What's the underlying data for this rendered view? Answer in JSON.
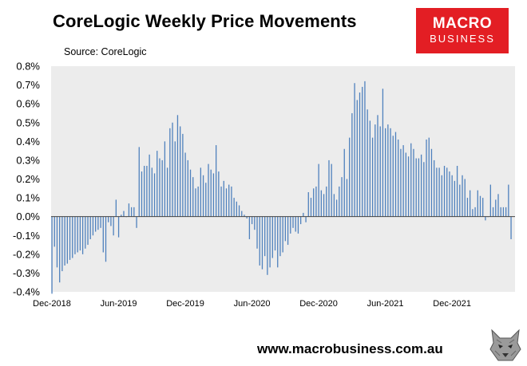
{
  "header": {
    "title": "CoreLogic Weekly Price Movements",
    "source": "Source: CoreLogic"
  },
  "logo": {
    "line1": "MACRO",
    "line2": "BUSINESS"
  },
  "footer": {
    "url": "www.macrobusiness.com.au"
  },
  "colors": {
    "bar": "#4f81bd",
    "plot_bg": "#ececec",
    "logo_bg": "#e31e24"
  },
  "chart_data": {
    "type": "bar",
    "title": "CoreLogic Weekly Price Movements",
    "ylim": [
      -0.4,
      0.8
    ],
    "yticks": [
      "0.8%",
      "0.7%",
      "0.6%",
      "0.5%",
      "0.4%",
      "0.3%",
      "0.2%",
      "0.1%",
      "0.0%",
      "-0.1%",
      "-0.2%",
      "-0.3%",
      "-0.4%"
    ],
    "ytick_values": [
      0.8,
      0.7,
      0.6,
      0.5,
      0.4,
      0.3,
      0.2,
      0.1,
      0.0,
      -0.1,
      -0.2,
      -0.3,
      -0.4
    ],
    "xtick_labels": [
      "Dec-2018",
      "Jun-2019",
      "Dec-2019",
      "Jun-2020",
      "Dec-2020",
      "Jun-2021",
      "Dec-2021"
    ],
    "xtick_week_index": [
      0,
      26,
      52,
      78,
      104,
      130,
      156
    ],
    "grid": false,
    "series": [
      {
        "unit": "%",
        "values": [
          -0.41,
          -0.16,
          -0.27,
          -0.35,
          -0.29,
          -0.26,
          -0.25,
          -0.23,
          -0.22,
          -0.2,
          -0.19,
          -0.18,
          -0.2,
          -0.17,
          -0.15,
          -0.12,
          -0.1,
          -0.08,
          -0.07,
          -0.06,
          -0.19,
          -0.24,
          -0.03,
          -0.05,
          -0.1,
          0.09,
          -0.11,
          0.01,
          0.03,
          0.0,
          0.07,
          0.05,
          0.05,
          -0.06,
          0.37,
          0.24,
          0.27,
          0.27,
          0.33,
          0.26,
          0.23,
          0.35,
          0.31,
          0.3,
          0.4,
          0.26,
          0.47,
          0.5,
          0.4,
          0.54,
          0.48,
          0.44,
          0.34,
          0.3,
          0.25,
          0.21,
          0.15,
          0.16,
          0.26,
          0.22,
          0.18,
          0.28,
          0.25,
          0.23,
          0.38,
          0.24,
          0.16,
          0.19,
          0.15,
          0.17,
          0.16,
          0.1,
          0.08,
          0.06,
          0.03,
          0.01,
          -0.01,
          -0.12,
          -0.04,
          -0.07,
          -0.17,
          -0.26,
          -0.28,
          -0.21,
          -0.31,
          -0.27,
          -0.22,
          -0.18,
          -0.27,
          -0.21,
          -0.19,
          -0.13,
          -0.15,
          -0.09,
          -0.06,
          -0.08,
          -0.09,
          -0.04,
          0.02,
          -0.03,
          0.13,
          0.1,
          0.15,
          0.16,
          0.28,
          0.14,
          0.12,
          0.16,
          0.3,
          0.28,
          0.12,
          0.09,
          0.16,
          0.21,
          0.36,
          0.2,
          0.42,
          0.55,
          0.71,
          0.62,
          0.66,
          0.69,
          0.72,
          0.57,
          0.51,
          0.42,
          0.49,
          0.54,
          0.48,
          0.68,
          0.47,
          0.49,
          0.47,
          0.43,
          0.45,
          0.41,
          0.36,
          0.38,
          0.34,
          0.32,
          0.39,
          0.36,
          0.31,
          0.31,
          0.33,
          0.29,
          0.41,
          0.42,
          0.36,
          0.3,
          0.26,
          0.26,
          0.22,
          0.27,
          0.26,
          0.24,
          0.22,
          0.19,
          0.27,
          0.17,
          0.22,
          0.2,
          0.1,
          0.14,
          0.04,
          0.05,
          0.14,
          0.11,
          0.1,
          -0.02,
          0.0,
          0.17,
          0.05,
          0.09,
          0.12,
          0.05,
          0.05,
          0.05,
          0.17,
          -0.12
        ]
      }
    ]
  }
}
